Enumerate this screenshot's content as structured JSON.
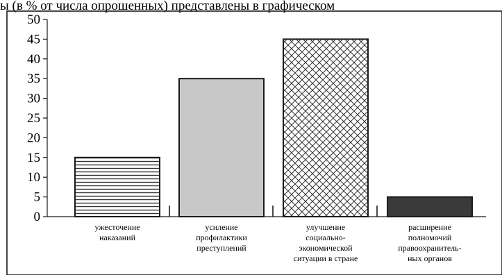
{
  "header": {
    "text": "ы (в % от числа опрошенных) представлены в графическом"
  },
  "chart_data": {
    "type": "bar",
    "title": "",
    "xlabel": "",
    "ylabel": "",
    "ylim": [
      0,
      50
    ],
    "yticks": [
      0,
      5,
      10,
      15,
      20,
      25,
      30,
      35,
      40,
      45,
      50
    ],
    "grid": false,
    "categories": [
      [
        "ужесточение",
        "наказаний"
      ],
      [
        "усиление",
        "профилактики",
        "преступлений"
      ],
      [
        "улучшение",
        "социально-",
        "экономической",
        "ситуации в стране"
      ],
      [
        "расширение",
        "полномочий",
        "правоохранитель-",
        "ных органов"
      ]
    ],
    "values": [
      15,
      35,
      45,
      5
    ],
    "bar_styles": [
      "horizontal-stripes",
      "solid-light-gray",
      "crosshatch",
      "solid-dark-gray"
    ],
    "colors": {
      "light_gray": "#c8c8c8",
      "dark_gray": "#3a3a3a",
      "stroke": "#1a1a1a"
    }
  }
}
